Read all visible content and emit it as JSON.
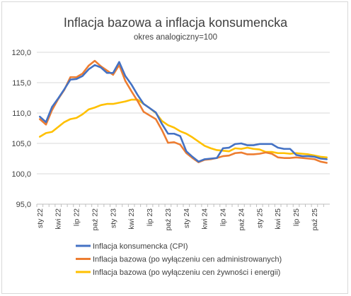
{
  "chart_data": {
    "type": "line",
    "title": "Inflacja bazowa a inflacja konsumencka",
    "subtitle": "okres analogiczny=100",
    "xlabel": "",
    "ylabel": "",
    "ylim": [
      95,
      120
    ],
    "yticks": [
      "95,0",
      "100,0",
      "105,0",
      "110,0",
      "115,0",
      "120,0"
    ],
    "grid": true,
    "legend_position": "bottom",
    "x": [
      "sty 22",
      "lut 22",
      "mar 22",
      "kwi 22",
      "maj 22",
      "cze 22",
      "lip 22",
      "sie 22",
      "wrz 22",
      "paź 22",
      "lis 22",
      "gru 22",
      "sty 23",
      "lut 23",
      "mar 23",
      "kwi 23",
      "maj 23",
      "cze 23",
      "lip 23",
      "sie 23",
      "wrz 23",
      "paź 23",
      "lis 23",
      "gru 23",
      "sty 24",
      "lut 24",
      "mar 24",
      "kwi 24",
      "maj 24",
      "cze 24",
      "lip 24",
      "sie 24",
      "wrz 24",
      "paź 24",
      "lis 24",
      "gru 24",
      "sty 25",
      "lut 25",
      "mar 25",
      "kwi 25",
      "maj 25",
      "cze 25",
      "lip 25",
      "sie 25",
      "wrz 25",
      "paź 25",
      "lis 25",
      "gru 25"
    ],
    "xtick_labels": [
      "sty 22",
      "kwi 22",
      "lip 22",
      "paź 22",
      "sty 23",
      "kwi 23",
      "lip 23",
      "paź 23",
      "sty 24",
      "kwi 24",
      "lip 24",
      "paź 24",
      "sty 25",
      "kwi 25",
      "lip 25",
      "paź 25"
    ],
    "series": [
      {
        "name": "Inflacja konsumencka (CPI)",
        "color": "#4472c4",
        "values": [
          109.4,
          108.5,
          111.0,
          112.4,
          113.9,
          115.5,
          115.6,
          116.1,
          117.2,
          117.9,
          117.5,
          116.6,
          116.6,
          118.4,
          116.1,
          114.7,
          113.0,
          111.5,
          110.8,
          110.1,
          108.2,
          106.6,
          106.6,
          106.2,
          103.7,
          102.8,
          102.0,
          102.4,
          102.5,
          102.6,
          104.2,
          104.3,
          104.9,
          105.0,
          104.7,
          104.7,
          104.9,
          104.9,
          104.9,
          104.3,
          104.1,
          104.1,
          103.1,
          102.9,
          102.9,
          102.8,
          102.5,
          102.4
        ]
      },
      {
        "name": "Inflacja bazowa (po wyłączeniu cen administrowanych)",
        "color": "#ed7d31",
        "values": [
          109.0,
          108.1,
          110.5,
          112.3,
          113.8,
          115.9,
          115.9,
          116.5,
          117.8,
          118.6,
          117.7,
          117.0,
          116.3,
          117.9,
          115.3,
          113.6,
          112.0,
          110.2,
          109.6,
          109.0,
          107.2,
          105.1,
          105.2,
          104.8,
          103.4,
          102.6,
          101.9,
          102.3,
          102.4,
          102.6,
          102.9,
          103.0,
          103.4,
          103.5,
          103.2,
          103.2,
          103.3,
          103.5,
          103.3,
          102.7,
          102.6,
          102.6,
          102.7,
          102.6,
          102.5,
          102.4,
          102.0,
          101.8
        ]
      },
      {
        "name": "Inflacja bazowa (po wyłączeniu cen żywności i energii)",
        "color": "#ffc000",
        "values": [
          106.1,
          106.7,
          106.9,
          107.7,
          108.5,
          109.0,
          109.2,
          109.8,
          110.6,
          110.9,
          111.3,
          111.5,
          111.5,
          111.7,
          111.9,
          112.2,
          112.2,
          111.5,
          110.8,
          110.0,
          108.7,
          108.0,
          107.6,
          107.0,
          106.6,
          106.0,
          105.3,
          104.6,
          104.2,
          103.9,
          103.8,
          103.7,
          104.2,
          104.1,
          104.3,
          104.1,
          104.0,
          103.6,
          103.6,
          103.4,
          103.4,
          103.3,
          103.4,
          103.3,
          103.2,
          103.0,
          102.8,
          102.7
        ]
      }
    ]
  }
}
